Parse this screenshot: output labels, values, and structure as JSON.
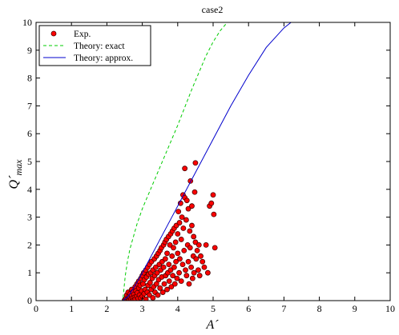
{
  "chart_data": {
    "type": "scatter",
    "title": "case2",
    "xlabel": "A´",
    "ylabel_main": "Q´",
    "ylabel_sub": "max",
    "xlim": [
      0,
      10
    ],
    "ylim": [
      0,
      10
    ],
    "xticks": [
      "0",
      "1",
      "2",
      "3",
      "4",
      "5",
      "6",
      "7",
      "8",
      "9",
      "10"
    ],
    "yticks": [
      "0",
      "1",
      "2",
      "3",
      "4",
      "5",
      "6",
      "7",
      "8",
      "9",
      "10"
    ],
    "grid": false,
    "legend_position": "top-left",
    "colors": {
      "exp_fill": "#ff0000",
      "exp_edge": "#4a0000",
      "exact": "#00cc00",
      "approx": "#0000cc"
    },
    "series": [
      {
        "name": "Exp.",
        "kind": "markers",
        "points": [
          [
            2.5,
            0.02
          ],
          [
            2.52,
            0.05
          ],
          [
            2.55,
            0.1
          ],
          [
            2.56,
            0.2
          ],
          [
            2.58,
            0.03
          ],
          [
            2.6,
            0.08
          ],
          [
            2.6,
            0.3
          ],
          [
            2.62,
            0.15
          ],
          [
            2.63,
            0.04
          ],
          [
            2.65,
            0.12
          ],
          [
            2.66,
            0.25
          ],
          [
            2.68,
            0.06
          ],
          [
            2.7,
            0.18
          ],
          [
            2.7,
            0.4
          ],
          [
            2.72,
            0.09
          ],
          [
            2.73,
            0.3
          ],
          [
            2.75,
            0.02
          ],
          [
            2.76,
            0.22
          ],
          [
            2.78,
            0.12
          ],
          [
            2.8,
            0.5
          ],
          [
            2.8,
            0.05
          ],
          [
            2.82,
            0.35
          ],
          [
            2.84,
            0.15
          ],
          [
            2.85,
            0.6
          ],
          [
            2.86,
            0.28
          ],
          [
            2.88,
            0.08
          ],
          [
            2.9,
            0.45
          ],
          [
            2.9,
            0.7
          ],
          [
            2.92,
            0.2
          ],
          [
            2.94,
            0.55
          ],
          [
            2.95,
            0.1
          ],
          [
            2.96,
            0.8
          ],
          [
            2.98,
            0.35
          ],
          [
            3.0,
            0.9
          ],
          [
            3.0,
            0.15
          ],
          [
            3.02,
            0.6
          ],
          [
            3.04,
            1.0
          ],
          [
            3.05,
            0.25
          ],
          [
            3.06,
            0.75
          ],
          [
            3.08,
            0.4
          ],
          [
            3.1,
            1.1
          ],
          [
            3.1,
            0.05
          ],
          [
            3.12,
            0.85
          ],
          [
            3.14,
            0.3
          ],
          [
            3.15,
            1.2
          ],
          [
            3.16,
            0.55
          ],
          [
            3.18,
            0.95
          ],
          [
            3.2,
            1.3
          ],
          [
            3.2,
            0.2
          ],
          [
            3.22,
            0.65
          ],
          [
            3.24,
            1.0
          ],
          [
            3.25,
            0.4
          ],
          [
            3.26,
            1.4
          ],
          [
            3.28,
            0.8
          ],
          [
            3.3,
            0.1
          ],
          [
            3.3,
            1.1
          ],
          [
            3.32,
            0.5
          ],
          [
            3.34,
            1.5
          ],
          [
            3.35,
            0.9
          ],
          [
            3.36,
            0.3
          ],
          [
            3.38,
            1.2
          ],
          [
            3.4,
            0.6
          ],
          [
            3.4,
            1.6
          ],
          [
            3.42,
            1.0
          ],
          [
            3.44,
            0.2
          ],
          [
            3.45,
            1.7
          ],
          [
            3.46,
            0.75
          ],
          [
            3.48,
            1.3
          ],
          [
            3.5,
            1.8
          ],
          [
            3.5,
            0.45
          ],
          [
            3.52,
            1.1
          ],
          [
            3.54,
            1.9
          ],
          [
            3.55,
            0.85
          ],
          [
            3.56,
            1.4
          ],
          [
            3.58,
            0.3
          ],
          [
            3.6,
            2.0
          ],
          [
            3.6,
            1.2
          ],
          [
            3.62,
            0.6
          ],
          [
            3.64,
            2.1
          ],
          [
            3.65,
            1.5
          ],
          [
            3.66,
            0.9
          ],
          [
            3.68,
            2.2
          ],
          [
            3.7,
            1.7
          ],
          [
            3.7,
            0.4
          ],
          [
            3.72,
            1.0
          ],
          [
            3.74,
            2.3
          ],
          [
            3.75,
            1.3
          ],
          [
            3.76,
            0.7
          ],
          [
            3.78,
            2.0
          ],
          [
            3.8,
            2.4
          ],
          [
            3.8,
            1.1
          ],
          [
            3.82,
            0.5
          ],
          [
            3.84,
            1.6
          ],
          [
            3.85,
            2.5
          ],
          [
            3.86,
            0.9
          ],
          [
            3.88,
            1.9
          ],
          [
            3.9,
            2.6
          ],
          [
            3.9,
            1.2
          ],
          [
            3.92,
            0.6
          ],
          [
            3.94,
            2.1
          ],
          [
            3.95,
            1.4
          ],
          [
            3.96,
            2.7
          ],
          [
            3.98,
            0.8
          ],
          [
            4.0,
            1.7
          ],
          [
            4.0,
            2.4
          ],
          [
            4.02,
            3.2
          ],
          [
            4.04,
            1.0
          ],
          [
            4.05,
            2.8
          ],
          [
            4.06,
            1.5
          ],
          [
            4.08,
            3.5
          ],
          [
            4.1,
            2.2
          ],
          [
            4.1,
            0.7
          ],
          [
            4.12,
            3.0
          ],
          [
            4.14,
            1.3
          ],
          [
            4.15,
            3.8
          ],
          [
            4.16,
            2.6
          ],
          [
            4.18,
            1.8
          ],
          [
            4.2,
            4.75
          ],
          [
            4.2,
            3.7
          ],
          [
            4.22,
            1.1
          ],
          [
            4.24,
            2.9
          ],
          [
            4.25,
            0.9
          ],
          [
            4.26,
            3.6
          ],
          [
            4.28,
            2.0
          ],
          [
            4.3,
            1.4
          ],
          [
            4.3,
            3.3
          ],
          [
            4.32,
            0.6
          ],
          [
            4.34,
            2.5
          ],
          [
            4.35,
            1.9
          ],
          [
            4.36,
            4.3
          ],
          [
            4.38,
            1.2
          ],
          [
            4.4,
            3.4
          ],
          [
            4.4,
            2.7
          ],
          [
            4.42,
            0.8
          ],
          [
            4.44,
            1.6
          ],
          [
            4.45,
            2.3
          ],
          [
            4.46,
            1.0
          ],
          [
            4.48,
            3.9
          ],
          [
            4.5,
            4.95
          ],
          [
            4.5,
            2.1
          ],
          [
            4.52,
            1.5
          ],
          [
            4.55,
            1.8
          ],
          [
            4.58,
            1.1
          ],
          [
            4.6,
            2.0
          ],
          [
            4.62,
            0.9
          ],
          [
            4.65,
            1.6
          ],
          [
            4.7,
            1.4
          ],
          [
            4.75,
            1.2
          ],
          [
            4.8,
            2.0
          ],
          [
            4.85,
            1.0
          ],
          [
            4.9,
            3.4
          ],
          [
            4.95,
            3.5
          ],
          [
            5.0,
            3.8
          ],
          [
            5.02,
            3.1
          ],
          [
            5.05,
            1.9
          ]
        ]
      },
      {
        "name": "Theory: exact",
        "kind": "dashed-line",
        "points": [
          [
            0.0,
            0.0
          ],
          [
            2.45,
            0.0
          ],
          [
            2.48,
            0.4
          ],
          [
            2.52,
            0.9
          ],
          [
            2.58,
            1.4
          ],
          [
            2.65,
            1.85
          ],
          [
            2.75,
            2.3
          ],
          [
            2.85,
            2.75
          ],
          [
            3.0,
            3.3
          ],
          [
            3.2,
            3.9
          ],
          [
            3.4,
            4.5
          ],
          [
            3.6,
            5.1
          ],
          [
            3.8,
            5.7
          ],
          [
            4.0,
            6.3
          ],
          [
            4.2,
            6.95
          ],
          [
            4.4,
            7.6
          ],
          [
            4.6,
            8.2
          ],
          [
            4.8,
            8.8
          ],
          [
            5.0,
            9.3
          ],
          [
            5.2,
            9.7
          ],
          [
            5.4,
            10.0
          ]
        ]
      },
      {
        "name": "Theory: approx.",
        "kind": "solid-line",
        "points": [
          [
            0.0,
            0.0
          ],
          [
            2.45,
            0.0
          ],
          [
            2.6,
            0.15
          ],
          [
            2.8,
            0.55
          ],
          [
            3.0,
            1.0
          ],
          [
            3.5,
            2.2
          ],
          [
            4.0,
            3.4
          ],
          [
            4.5,
            4.6
          ],
          [
            5.0,
            5.8
          ],
          [
            5.5,
            7.0
          ],
          [
            6.0,
            8.1
          ],
          [
            6.5,
            9.1
          ],
          [
            7.0,
            9.8
          ],
          [
            7.2,
            10.0
          ]
        ]
      }
    ]
  }
}
